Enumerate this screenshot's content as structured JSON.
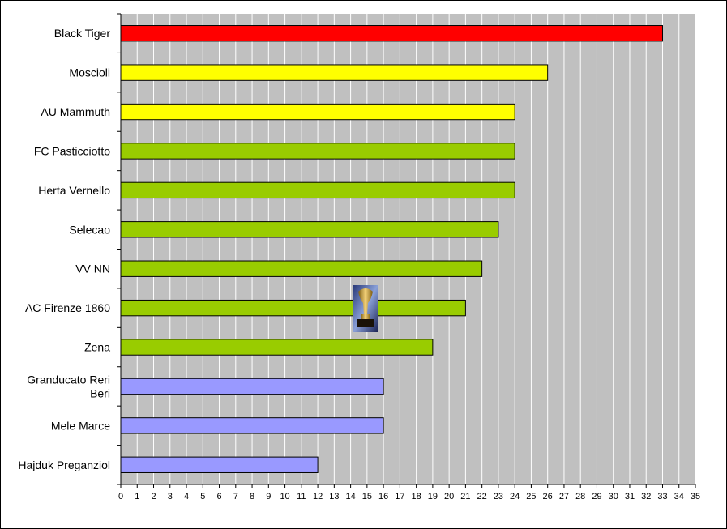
{
  "chart_data": {
    "type": "bar",
    "orientation": "horizontal",
    "categories": [
      [
        "Black Tiger"
      ],
      [
        "Moscioli"
      ],
      [
        "AU Mammuth"
      ],
      [
        "FC Pasticciotto"
      ],
      [
        "Herta Vernello"
      ],
      [
        "Selecao"
      ],
      [
        "VV NN"
      ],
      [
        "AC Firenze 1860"
      ],
      [
        "Zena"
      ],
      [
        "Granducato Reri",
        "Beri"
      ],
      [
        "Mele Marce"
      ],
      [
        "Hajduk Preganziol"
      ]
    ],
    "values": [
      33,
      26,
      24,
      24,
      24,
      23,
      22,
      21,
      19,
      16,
      16,
      12
    ],
    "bar_colors": [
      "#ff0000",
      "#ffff00",
      "#ffff00",
      "#99cc00",
      "#99cc00",
      "#99cc00",
      "#99cc00",
      "#99cc00",
      "#99cc00",
      "#9999ff",
      "#9999ff",
      "#9999ff"
    ],
    "xlim": [
      0,
      35
    ],
    "x_ticks": [
      "0",
      "1",
      "2",
      "3",
      "4",
      "5",
      "6",
      "7",
      "8",
      "9",
      "10",
      "11",
      "12",
      "13",
      "14",
      "15",
      "16",
      "17",
      "18",
      "19",
      "20",
      "21",
      "22",
      "23",
      "24",
      "25",
      "26",
      "27",
      "28",
      "29",
      "30",
      "31",
      "32",
      "33",
      "34",
      "35"
    ],
    "grid": "vertical",
    "plot_background": "#c0c0c0",
    "grid_color": "#ffffff",
    "title": "",
    "xlabel": "",
    "ylabel": "",
    "annotation_image": "world-cup-trophy-icon"
  }
}
